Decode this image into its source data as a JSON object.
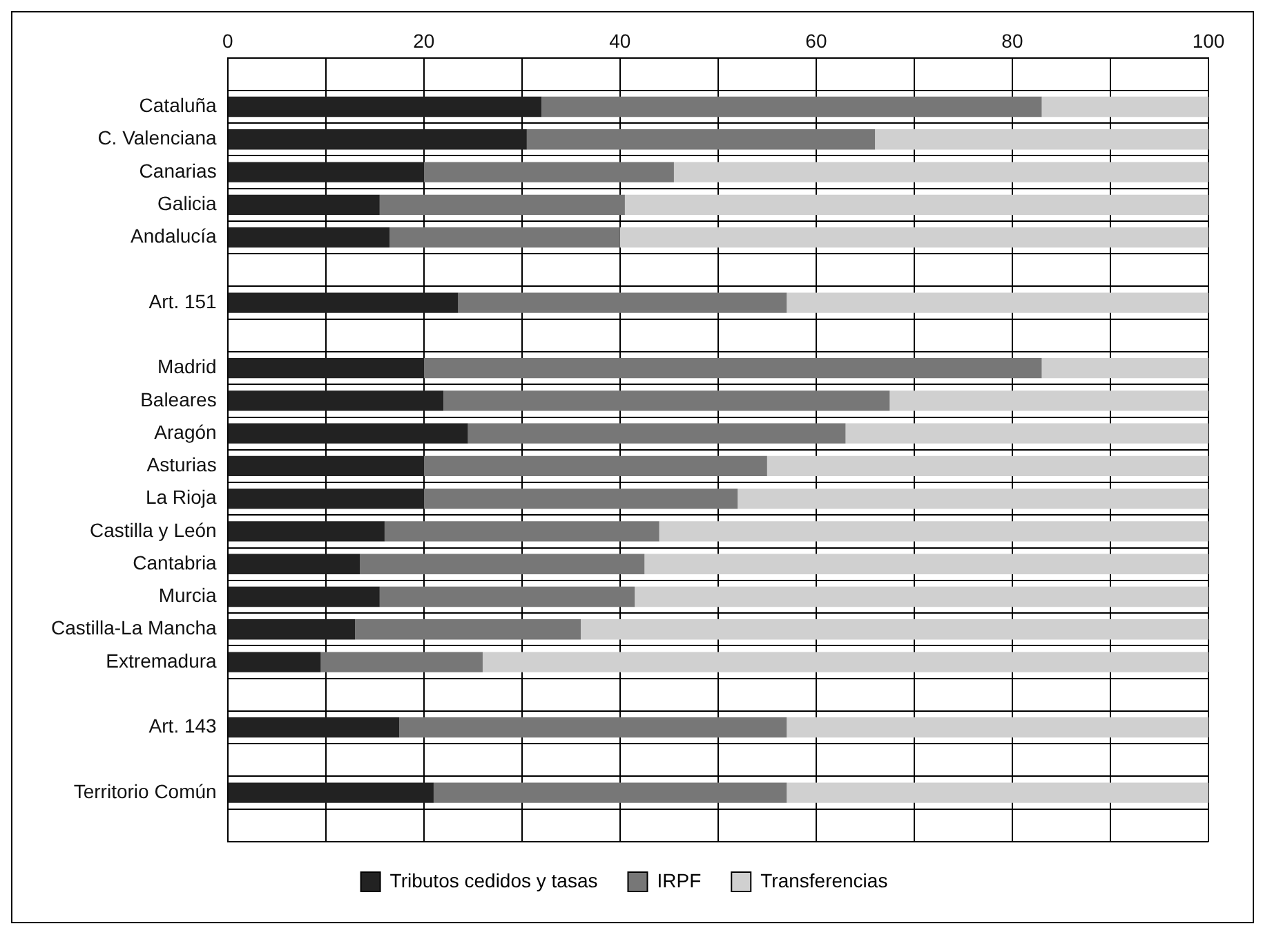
{
  "chart_data": {
    "type": "bar",
    "orientation": "horizontal",
    "stacked": true,
    "categories": [
      null,
      "Cataluña",
      "C. Valenciana",
      "Canarias",
      "Galicia",
      "Andalucía",
      null,
      "Art. 151",
      null,
      "Madrid",
      "Baleares",
      "Aragón",
      "Asturias",
      "La Rioja",
      "Castilla y León",
      "Cantabria",
      "Murcia",
      "Castilla-La Mancha",
      "Extremadura",
      null,
      "Art. 143",
      null,
      "Territorio Común",
      null
    ],
    "series": [
      {
        "name": "Tributos cedidos y tasas",
        "color": "#222222",
        "values": [
          null,
          32,
          30.5,
          20,
          15.5,
          16.5,
          null,
          23.5,
          null,
          20,
          22,
          24.5,
          20,
          20,
          16,
          13.5,
          15.5,
          13,
          9.5,
          null,
          17.5,
          null,
          21,
          null
        ]
      },
      {
        "name": "IRPF",
        "color": "#777777",
        "values": [
          null,
          51,
          35.5,
          25.5,
          25,
          23.5,
          null,
          33.5,
          null,
          63,
          45.5,
          38.5,
          35,
          32,
          28,
          29,
          26,
          23,
          16.5,
          null,
          39.5,
          null,
          36,
          null
        ]
      },
      {
        "name": "Transferencias",
        "color": "#d0d0d0",
        "values": [
          null,
          17,
          34,
          54.5,
          59.5,
          60,
          null,
          43,
          null,
          17,
          32.5,
          37,
          45,
          48,
          56,
          57.5,
          58.5,
          64,
          74,
          null,
          43,
          null,
          43,
          null
        ]
      }
    ],
    "xlim": [
      0,
      100
    ],
    "xticks": [
      0,
      {
        "value": 10,
        "label": null
      },
      20,
      {
        "value": 30,
        "label": null
      },
      40,
      {
        "value": 50,
        "label": null
      },
      60,
      {
        "value": 70,
        "label": null
      },
      80,
      {
        "value": 90,
        "label": null
      },
      100
    ],
    "grid": true,
    "legend": "bottom"
  }
}
